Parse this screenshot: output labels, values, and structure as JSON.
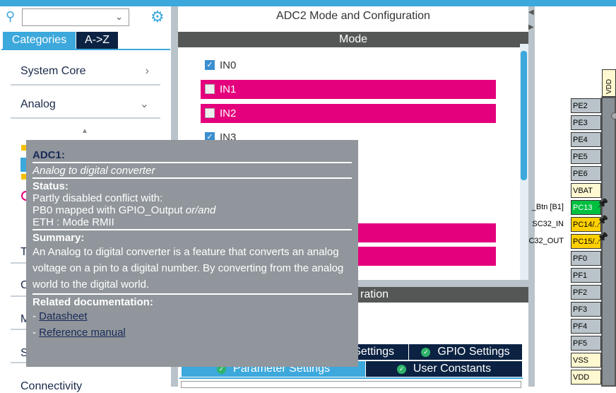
{
  "left_panel": {
    "search": {
      "value": "",
      "placeholder": ""
    },
    "tabs": [
      {
        "label": "Categories",
        "active": true
      },
      {
        "label": "A->Z",
        "active": false
      }
    ],
    "categories": [
      {
        "label": "System Core",
        "state": "collapsed"
      },
      {
        "label": "Analog",
        "state": "expanded"
      }
    ],
    "partial_letters": [
      "T",
      "C",
      "M",
      "S"
    ],
    "partial_bottom": "Connectivity"
  },
  "center": {
    "title": "ADC2 Mode and Configuration",
    "mode_header": "Mode",
    "channels": [
      {
        "label": "IN0",
        "checked": true,
        "conflict": false
      },
      {
        "label": "IN1",
        "checked": false,
        "conflict": true
      },
      {
        "label": "IN2",
        "checked": false,
        "conflict": true
      },
      {
        "label": "IN3",
        "checked": true,
        "conflict": false
      }
    ],
    "config_header_fragment": "ration",
    "settings_tabs": [
      {
        "label": "Settings",
        "partial": true
      },
      {
        "label": "GPIO Settings"
      },
      {
        "label": "Parameter Settings",
        "active": true
      },
      {
        "label": "User Constants"
      }
    ]
  },
  "pinout": {
    "top_pin": "VDD",
    "pins": [
      {
        "name": "PE2",
        "type": "io"
      },
      {
        "name": "PE3",
        "type": "io"
      },
      {
        "name": "PE4",
        "type": "io"
      },
      {
        "name": "PE5",
        "type": "io"
      },
      {
        "name": "PE6",
        "type": "io"
      },
      {
        "name": "VBAT",
        "type": "power"
      },
      {
        "name": "PC13",
        "type": "green",
        "label": "_Btn [B1]"
      },
      {
        "name": "PC14/..",
        "type": "yellow",
        "label": "SC32_IN"
      },
      {
        "name": "PC15/..",
        "type": "yellow",
        "label": "C32_OUT"
      },
      {
        "name": "PF0",
        "type": "io"
      },
      {
        "name": "PF1",
        "type": "io"
      },
      {
        "name": "PF2",
        "type": "io"
      },
      {
        "name": "PF3",
        "type": "io"
      },
      {
        "name": "PF4",
        "type": "io"
      },
      {
        "name": "PF5",
        "type": "io"
      },
      {
        "name": "VSS",
        "type": "power"
      },
      {
        "name": "VDD",
        "type": "power"
      }
    ]
  },
  "tooltip": {
    "title": "ADC1:",
    "subtitle": "Analog to digital converter",
    "status_heading": "Status:",
    "status_lines": [
      "Partly disabled conflict with:",
      "PB0 mapped with GPIO_Output ",
      "or/and",
      "ETH : Mode RMII"
    ],
    "summary_heading": "Summary:",
    "summary": "An Analog to digital converter is a feature that converts an analog voltage on a pin to a digital number. By converting from the analog world to the digital world.",
    "docs_heading": "Related documentation:",
    "docs": [
      "Datasheet ",
      "Reference manual "
    ]
  },
  "colors": {
    "accent": "#3ca8dc",
    "navy": "#0b2242",
    "conflict": "#e4007c",
    "header": "#555756",
    "tooltip": "#90969b"
  }
}
